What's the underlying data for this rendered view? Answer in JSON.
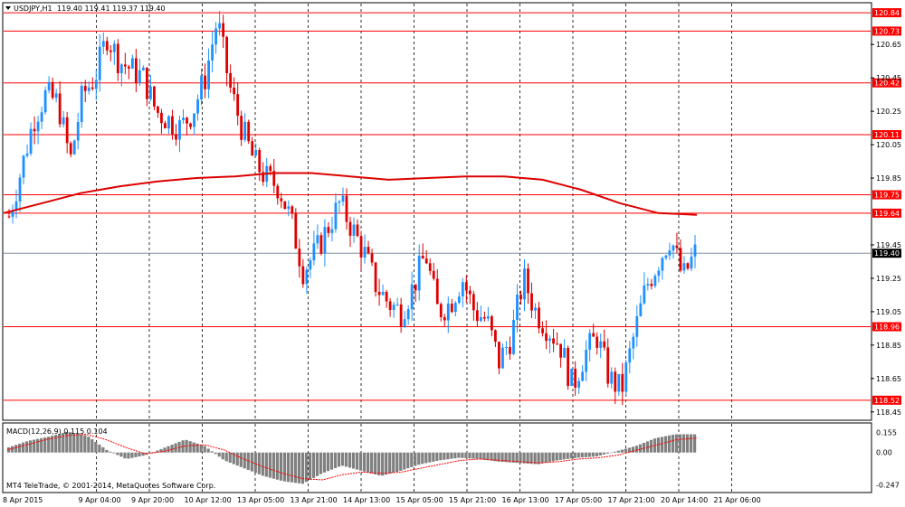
{
  "header": {
    "symbol": "USDJPY,H1",
    "ohlc": "119.40 119.41 119.37 119.40"
  },
  "price_axis": {
    "ticks": [
      "120.65",
      "120.45",
      "120.25",
      "120.05",
      "119.85",
      "119.45",
      "119.25",
      "119.05",
      "118.85",
      "118.65",
      "118.45"
    ]
  },
  "levels": [
    {
      "label": "120.84",
      "value": 120.84
    },
    {
      "label": "120.73",
      "value": 120.73
    },
    {
      "label": "120.42",
      "value": 120.42
    },
    {
      "label": "120.11",
      "value": 120.11
    },
    {
      "label": "119.75",
      "value": 119.75
    },
    {
      "label": "119.64",
      "value": 119.64
    },
    {
      "label": "118.96",
      "value": 118.96
    },
    {
      "label": "118.52",
      "value": 118.52
    }
  ],
  "current_price": {
    "label": "119.40",
    "value": 119.4
  },
  "macd": {
    "title": "MACD(12,26,9) 0.115 0.104",
    "ticks": [
      "0.155",
      "0.00",
      "-0.247"
    ]
  },
  "time_axis": {
    "labels": [
      "8 Apr 2015",
      "9 Apr 04:00",
      "9 Apr 20:00",
      "10 Apr 12:00",
      "13 Apr 05:00",
      "13 Apr 21:00",
      "14 Apr 13:00",
      "15 Apr 05:00",
      "15 Apr 21:00",
      "16 Apr 13:00",
      "17 Apr 05:00",
      "17 Apr 21:00",
      "20 Apr 14:00",
      "21 Apr 06:00"
    ]
  },
  "copyright": "MT4 TeleTrade, © 2001-2014, MetaQuotes Software Corp.",
  "colors": {
    "bull": "#1e90ff",
    "bear": "#dd0000",
    "level_line": "#ff0000",
    "ma_line": "#dd0000",
    "grid": "#000000",
    "hist": "#808080",
    "signal": "#ff0000",
    "current_line": "#708090"
  },
  "chart_data": {
    "type": "candlestick",
    "instrument": "USDJPY",
    "timeframe": "H1",
    "ylim": [
      118.4,
      120.9
    ],
    "x": [
      "8 Apr 2015",
      "9 Apr 04:00",
      "9 Apr 20:00",
      "10 Apr 12:00",
      "13 Apr 05:00",
      "13 Apr 21:00",
      "14 Apr 13:00",
      "15 Apr 05:00",
      "15 Apr 21:00",
      "16 Apr 13:00",
      "17 Apr 05:00",
      "17 Apr 21:00",
      "20 Apr 14:00",
      "21 Apr 06:00"
    ],
    "close_path": [
      119.62,
      119.9,
      120.2,
      120.35,
      120.3,
      119.95,
      120.35,
      120.45,
      120.7,
      120.55,
      120.5,
      120.45,
      120.25,
      120.2,
      120.15,
      120.25,
      120.45,
      120.8,
      120.4,
      120.15,
      119.95,
      119.85,
      119.8,
      119.6,
      119.3,
      119.4,
      119.55,
      119.7,
      119.55,
      119.4,
      119.2,
      119.1,
      119.05,
      119.2,
      119.4,
      119.05,
      119.1,
      119.25,
      119.05,
      119.0,
      118.75,
      118.9,
      119.25,
      119.05,
      118.95,
      118.85,
      118.6,
      118.8,
      118.9,
      118.65,
      118.58,
      118.9,
      119.2,
      119.35,
      119.5,
      119.25,
      119.4
    ],
    "moving_average": [
      119.64,
      119.7,
      119.76,
      119.8,
      119.83,
      119.85,
      119.86,
      119.88,
      119.88,
      119.86,
      119.84,
      119.85,
      119.86,
      119.86,
      119.84,
      119.78,
      119.7,
      119.64,
      119.63
    ],
    "macd_histogram": [
      0.04,
      0.09,
      0.12,
      0.16,
      0.13,
      0.02,
      -0.05,
      -0.02,
      0.04,
      0.1,
      0.05,
      -0.06,
      -0.12,
      -0.18,
      -0.22,
      -0.24,
      -0.16,
      -0.1,
      -0.14,
      -0.18,
      -0.14,
      -0.09,
      -0.06,
      -0.04,
      -0.05,
      -0.07,
      -0.08,
      -0.09,
      -0.06,
      -0.04,
      -0.03,
      0.01,
      0.05,
      0.11,
      0.14,
      0.14
    ],
    "macd_signal": [
      0.02,
      0.06,
      0.1,
      0.13,
      0.14,
      0.1,
      0.04,
      -0.01,
      0.01,
      0.05,
      0.06,
      0.02,
      -0.05,
      -0.11,
      -0.16,
      -0.2,
      -0.21,
      -0.17,
      -0.15,
      -0.16,
      -0.15,
      -0.12,
      -0.09,
      -0.06,
      -0.05,
      -0.06,
      -0.07,
      -0.08,
      -0.07,
      -0.05,
      -0.04,
      -0.02,
      0.02,
      0.06,
      0.1,
      0.11
    ]
  }
}
